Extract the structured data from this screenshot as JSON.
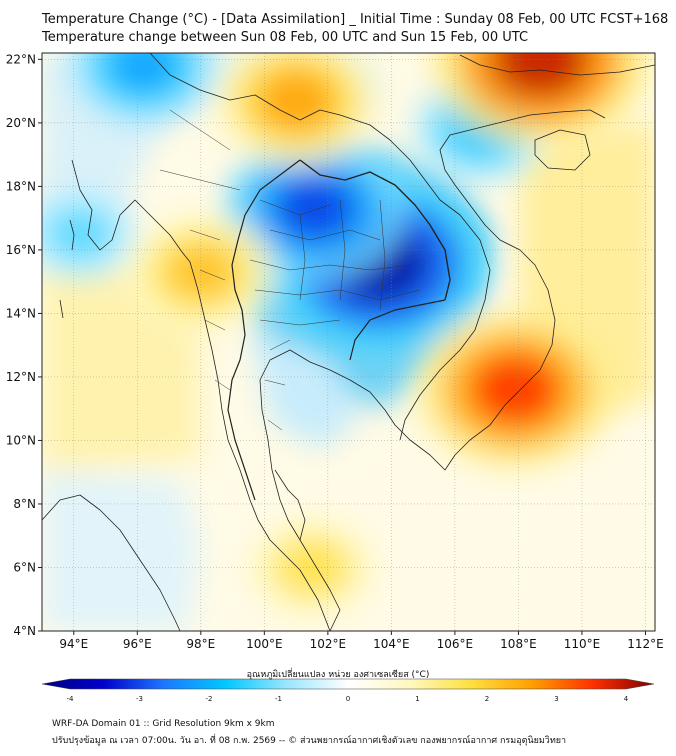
{
  "header": {
    "title_line1": "Temperature Change (°C) - [Data Assimilation] _ Initial Time : Sunday 08 Feb, 00 UTC FCST+168",
    "title_line2": "Temperature change between Sun 08 Feb, 00 UTC and Sun 15 Feb, 00 UTC"
  },
  "map": {
    "lat_labels": [
      "22°N",
      "20°N",
      "18°N",
      "16°N",
      "14°N",
      "12°N",
      "10°N",
      "8°N",
      "6°N",
      "4°N"
    ],
    "lon_labels": [
      "94°E",
      "96°E",
      "98°E",
      "100°E",
      "102°E",
      "104°E",
      "106°E",
      "108°E",
      "110°E",
      "112°E"
    ],
    "lat_values": [
      22,
      20,
      18,
      16,
      14,
      12,
      10,
      8,
      6,
      4
    ],
    "lon_values": [
      94,
      96,
      98,
      100,
      102,
      104,
      106,
      108,
      110,
      112
    ],
    "lat_range": [
      4,
      22.2
    ],
    "lon_range": [
      93,
      112.3
    ],
    "anomalies": [
      {
        "name": "central-cooling-core",
        "lon": 103.6,
        "lat": 15.6,
        "value": -3.7
      },
      {
        "name": "north-thailand-cooling",
        "lon": 101.6,
        "lat": 17.3,
        "value": -2.8
      },
      {
        "name": "myanmar-north-cooling",
        "lon": 96.2,
        "lat": 21.8,
        "value": -2.0
      },
      {
        "name": "south-china-sea-cooling",
        "lon": 106.8,
        "lat": 19.8,
        "value": -1.6
      },
      {
        "name": "andaman-cooling",
        "lon": 94.2,
        "lat": 16.5,
        "value": -1.2
      },
      {
        "name": "southern-cambodia-warming",
        "lon": 107.9,
        "lat": 11.6,
        "value": 3.2
      },
      {
        "name": "south-china-warming",
        "lon": 108.7,
        "lat": 22.0,
        "value": 3.6
      },
      {
        "name": "north-laos-warming",
        "lon": 101.0,
        "lat": 20.7,
        "value": 2.4
      },
      {
        "name": "myanmar-coast-warming",
        "lon": 98.0,
        "lat": 15.3,
        "value": 2.0
      },
      {
        "name": "malay-peninsula-warming",
        "lon": 101.5,
        "lat": 6.0,
        "value": 1.6
      }
    ]
  },
  "colorbar": {
    "title": "อุณหภูมิเปลี่ยนแปลง หน่วย องศาเซลเซียส (°C)",
    "min": -4,
    "max": 4,
    "tick_labels": [
      "-4",
      "-3",
      "-2",
      "-1",
      "0",
      "1",
      "2",
      "3",
      "4"
    ],
    "stops": [
      {
        "v": -4,
        "color": "#000080"
      },
      {
        "v": -3.2,
        "color": "#0000cc"
      },
      {
        "v": -2.4,
        "color": "#1e78ff"
      },
      {
        "v": -1.6,
        "color": "#00c8ff"
      },
      {
        "v": -0.8,
        "color": "#9be6ff"
      },
      {
        "v": 0,
        "color": "#ffffff"
      },
      {
        "v": 0.8,
        "color": "#fff8c0"
      },
      {
        "v": 1.6,
        "color": "#ffe040"
      },
      {
        "v": 2.4,
        "color": "#ffa000"
      },
      {
        "v": 3.2,
        "color": "#ff3000"
      },
      {
        "v": 4,
        "color": "#800000"
      }
    ]
  },
  "footer": {
    "line1": "WRF-DA Domain 01 :: Grid Resolution 9km x 9km",
    "line2": "ปรับปรุงข้อมูล ณ เวลา 07:00น. วัน อา. ที่ 08 ก.พ. 2569 -- © ส่วนพยากรณ์อากาศเชิงตัวเลข กองพยากรณ์อากาศ กรมอุตุนิยมวิทยา"
  }
}
